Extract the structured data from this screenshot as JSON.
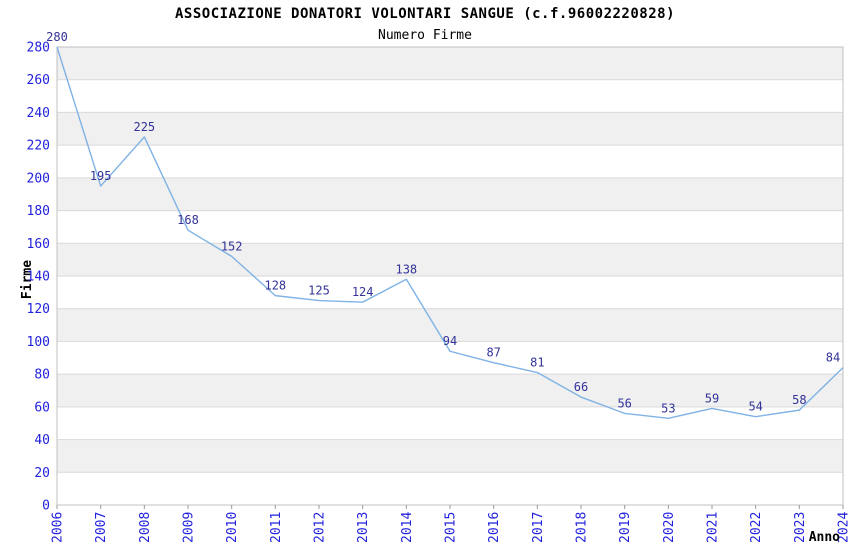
{
  "chart_data": {
    "type": "line",
    "title": "ASSOCIAZIONE DONATORI VOLONTARI SANGUE (c.f.96002220828)",
    "subtitle": "Numero Firme",
    "xlabel": "Anno",
    "ylabel": "Firme",
    "categories": [
      "2006",
      "2007",
      "2008",
      "2009",
      "2010",
      "2011",
      "2012",
      "2013",
      "2014",
      "2015",
      "2016",
      "2017",
      "2018",
      "2019",
      "2020",
      "2021",
      "2022",
      "2023",
      "2024"
    ],
    "values": [
      280,
      195,
      225,
      168,
      152,
      128,
      125,
      124,
      138,
      94,
      87,
      81,
      66,
      56,
      53,
      59,
      54,
      58,
      84
    ],
    "ylim": [
      0,
      280
    ],
    "ytick_step": 20,
    "grid": true,
    "legend": "none",
    "band_fill": "alternating horizontal bands, gray on odd 20-unit slots (20-40, 60-80, ... 260-280)",
    "colors": {
      "line": "#7fb2e5",
      "tick_label": "#2222dd",
      "data_label": "#333399",
      "band": "#f0f0f0",
      "grid": "#d9d9d9",
      "border": "#c0c0c0",
      "axis_tick": "#999999",
      "title": "#111111",
      "subtitle": "#555555",
      "axis_title": "#222222"
    }
  }
}
